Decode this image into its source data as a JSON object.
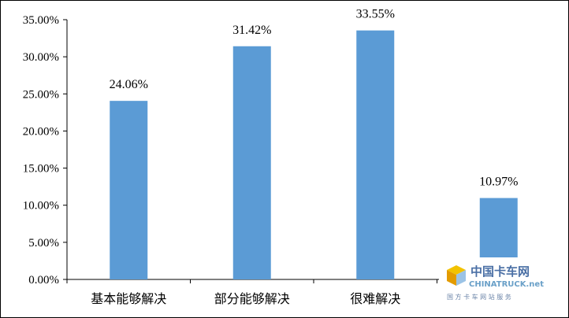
{
  "chart_data": {
    "type": "bar",
    "categories": [
      "基本能够解决",
      "部分能够解决",
      "很难解决",
      ""
    ],
    "values": [
      24.06,
      31.42,
      33.55,
      10.97
    ],
    "data_labels": [
      "24.06%",
      "31.42%",
      "33.55%",
      "10.97%"
    ],
    "y_ticks": [
      "0.00%",
      "5.00%",
      "10.00%",
      "15.00%",
      "20.00%",
      "25.00%",
      "30.00%",
      "35.00%"
    ],
    "ylim": [
      0,
      35
    ],
    "grid": false,
    "legend": "none",
    "bar_color": "#5b9bd5"
  },
  "watermark": {
    "cn": "中国卡车网",
    "en": "CHINATRUCK",
    "suffix": ".net",
    "sub": "国 方 卡 车 网 站 服 务",
    "logo_icon": "cube-logo-icon"
  }
}
